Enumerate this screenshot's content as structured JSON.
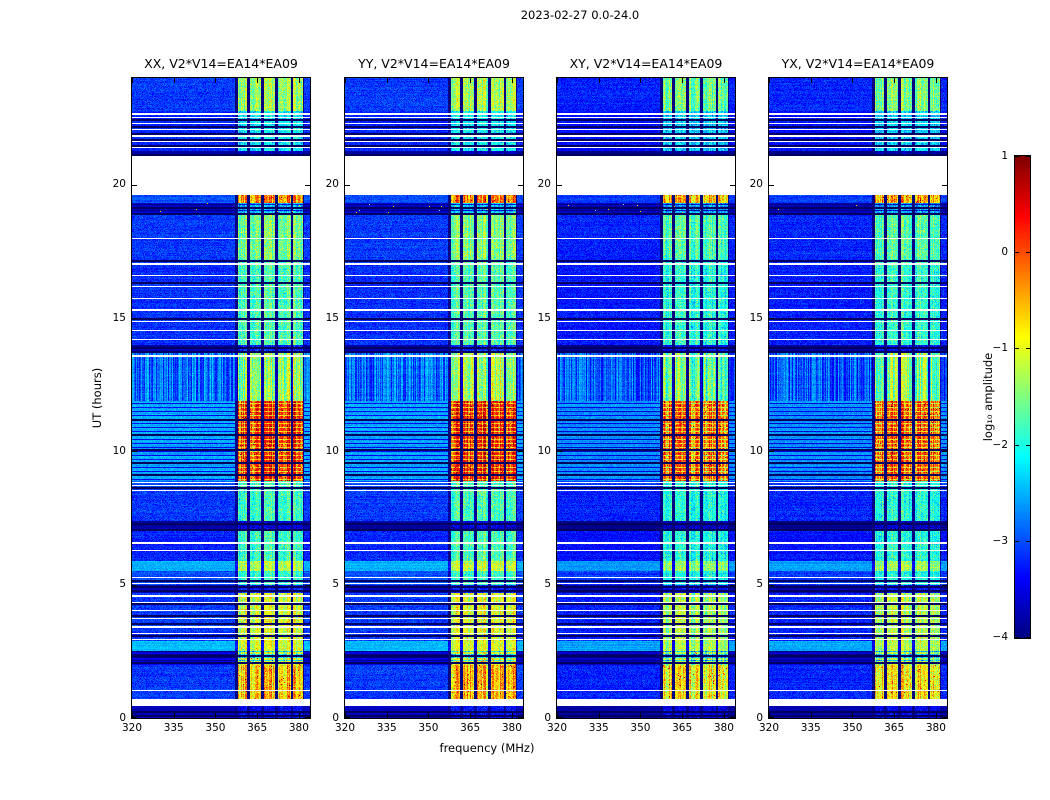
{
  "figure": {
    "title": "2023-02-27 0.0-24.0",
    "xlabel": "frequency (MHz)",
    "ylabel": "UT (hours)",
    "colorbar_label": "log₁₀ amplitude"
  },
  "chart_data": {
    "type": "heatmap",
    "title": "2023-02-27 0.0-24.0",
    "xlabel": "frequency (MHz)",
    "ylabel": "UT (hours)",
    "x_range_mhz": [
      320,
      384
    ],
    "y_range_hours": [
      0,
      24
    ],
    "x_ticks": [
      320,
      335,
      350,
      365,
      380
    ],
    "y_ticks": [
      0,
      5,
      10,
      15,
      20
    ],
    "colormap": "jet",
    "background": "#ffffff",
    "frame_color": "#000000",
    "colorbar": {
      "label": "log₁₀ amplitude",
      "ticks": [
        1,
        0,
        -1,
        -2,
        -3,
        -4
      ],
      "range": [
        -4,
        1
      ]
    },
    "panels": [
      {
        "title": "XX, V2*V14=EA14*EA09",
        "gain": 1.0,
        "base_shift": 0
      },
      {
        "title": "YY, V2*V14=EA14*EA09",
        "gain": 1.03,
        "base_shift": 0
      },
      {
        "title": "XY, V2*V14=EA14*EA09",
        "gain": 0.93,
        "base_shift": -0.12
      },
      {
        "title": "YX, V2*V14=EA14*EA09",
        "gain": 0.97,
        "base_shift": -0.1
      }
    ],
    "rfi_band_mhz": [
      357,
      382
    ],
    "rfi_subbands": [
      [
        358,
        361.5
      ],
      [
        362.5,
        366.5
      ],
      [
        367.5,
        371.5
      ],
      [
        372.5,
        377
      ],
      [
        378,
        381.5
      ]
    ],
    "segments": [
      {
        "t": [
          0.0,
          0.45
        ],
        "base": -3.7,
        "noise": 0.08,
        "rfi": 0.35
      },
      {
        "t": [
          0.45,
          0.68
        ],
        "white": true
      },
      {
        "t": [
          0.68,
          2.0
        ],
        "base": -3.1,
        "noise": 0.18,
        "rfi": 2.7
      },
      {
        "t": [
          2.0,
          2.5
        ],
        "base": -3.5,
        "noise": 0.12,
        "rfi": 2.6,
        "darkrows": true
      },
      {
        "t": [
          2.5,
          2.9
        ],
        "base": -2.45,
        "noise": 0.12,
        "rfi": 1.5
      },
      {
        "t": [
          2.9,
          4.7
        ],
        "base": -3.1,
        "noise": 0.18,
        "rfi": 2.2
      },
      {
        "t": [
          4.7,
          5.0
        ],
        "base": -3.7,
        "noise": 0.08,
        "rfi": 0.5
      },
      {
        "t": [
          5.0,
          5.5
        ],
        "base": -3.0,
        "noise": 0.16,
        "rfi": 1.2
      },
      {
        "t": [
          5.5,
          5.9
        ],
        "base": -2.5,
        "noise": 0.12,
        "rfi": 1.4
      },
      {
        "t": [
          5.9,
          7.0
        ],
        "base": -3.2,
        "noise": 0.18,
        "rfi": 1.5
      },
      {
        "t": [
          7.0,
          7.4
        ],
        "base": -3.85,
        "noise": 0.06,
        "rfi": 0.3
      },
      {
        "t": [
          7.4,
          8.5
        ],
        "base": -3.1,
        "noise": 0.18,
        "rfi": 1.4
      },
      {
        "t": [
          8.5,
          8.9
        ],
        "base": -3.0,
        "noise": 0.15,
        "rfi": 1.3
      },
      {
        "t": [
          8.9,
          11.9
        ],
        "base": -2.55,
        "noise": 0.14,
        "rfi": 2.9,
        "striations": true
      },
      {
        "t": [
          11.9,
          13.7
        ],
        "base": -2.85,
        "noise": 0.14,
        "rfi": 1.6,
        "colstreaks": true
      },
      {
        "t": [
          13.7,
          14.0
        ],
        "base": -3.75,
        "noise": 0.08,
        "rfi": 0.6
      },
      {
        "t": [
          14.0,
          17.2
        ],
        "base": -3.15,
        "noise": 0.18,
        "rfi": 1.5
      },
      {
        "t": [
          17.2,
          18.85
        ],
        "base": -3.1,
        "noise": 0.18,
        "rfi": 1.7
      },
      {
        "t": [
          18.85,
          19.3
        ],
        "base": -3.6,
        "noise": 0.12,
        "rfi": 1.3,
        "darkrows": true,
        "speckle": true
      },
      {
        "t": [
          19.3,
          19.6
        ],
        "base": -3.0,
        "noise": 0.15,
        "rfi": 2.9
      },
      {
        "t": [
          19.6,
          21.1
        ],
        "white": true
      },
      {
        "t": [
          21.1,
          21.25
        ],
        "base": -3.85,
        "noise": 0.06,
        "rfi": 0.2
      },
      {
        "t": [
          21.25,
          22.75
        ],
        "base": -3.2,
        "noise": 0.15,
        "rfi": 1.1
      },
      {
        "t": [
          22.75,
          24.0
        ],
        "base": -3.1,
        "noise": 0.18,
        "rfi": 1.9
      }
    ],
    "white_lines": [
      0.72,
      1.05,
      2.95,
      3.2,
      3.45,
      3.75,
      4.05,
      4.35,
      4.6,
      5.08,
      5.3,
      6.3,
      6.6,
      8.55,
      8.72,
      8.85,
      13.62,
      14.2,
      14.55,
      14.9,
      15.35,
      15.75,
      16.2,
      16.6,
      17.05,
      18.0,
      21.4,
      21.62,
      21.85,
      22.1,
      22.32,
      22.55,
      22.68
    ],
    "dark_lines": [
      0.12,
      0.28,
      2.1,
      2.35,
      3.1,
      3.55,
      3.85,
      4.3,
      4.8,
      4.95,
      5.18,
      7.08,
      7.3,
      8.65,
      9.15,
      9.6,
      10.1,
      10.65,
      11.2,
      13.78,
      13.92,
      15.0,
      16.35,
      17.18,
      18.95,
      19.18,
      21.15,
      21.5,
      21.72,
      21.95,
      22.2,
      22.45
    ]
  }
}
